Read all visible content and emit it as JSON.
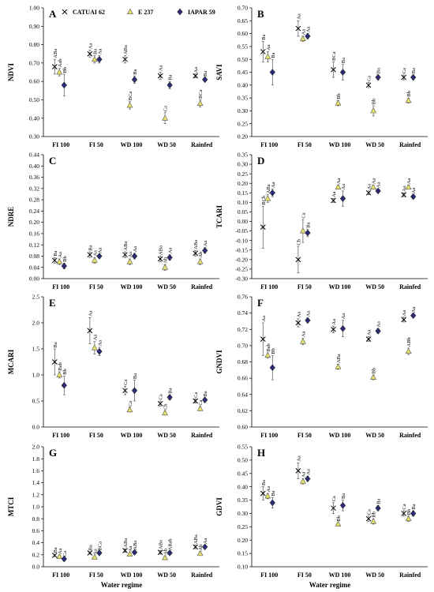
{
  "figure": {
    "x_axis_title": "Water regime",
    "legend": [
      {
        "name": "CATUAI 62",
        "marker": "x",
        "color": "#000000"
      },
      {
        "name": "E 237",
        "marker": "triangle",
        "color": "#e8e36a"
      },
      {
        "name": "IAPAR 59",
        "marker": "diamond",
        "color": "#2b2b7a"
      }
    ]
  },
  "chart_data": [
    {
      "panel": "A",
      "type": "scatter",
      "ylabel": "NDVI",
      "categories": [
        "FI 100",
        "FI 50",
        "WD 100",
        "WD 50",
        "Rainfed"
      ],
      "ylim": [
        0.3,
        1.0
      ],
      "yticks": [
        0.3,
        0.4,
        0.5,
        0.6,
        0.7,
        0.8,
        0.9,
        1.0
      ],
      "ydec": 2,
      "series": [
        {
          "name": "CATUAI 62",
          "values": [
            0.68,
            0.75,
            0.72,
            0.63,
            0.63
          ],
          "err": [
            0.04,
            0.02,
            0.02,
            0.02,
            0.01
          ],
          "labels": [
            "ABa",
            "Aa",
            "ABa",
            "Aa",
            "Aa"
          ]
        },
        {
          "name": "E 237",
          "values": [
            0.65,
            0.72,
            0.47,
            0.4,
            0.48
          ],
          "err": [
            0.02,
            0.02,
            0.02,
            0.03,
            0.02
          ],
          "labels": [
            "Aab",
            "Ba",
            "BCa",
            "Ca",
            "BCa"
          ]
        },
        {
          "name": "IAPAR 59",
          "values": [
            0.58,
            0.72,
            0.61,
            0.58,
            0.61
          ],
          "err": [
            0.06,
            0.02,
            0.02,
            0.02,
            0.01
          ],
          "labels": [
            "Bb",
            "Aa",
            "Ba",
            "Ba",
            "Ba"
          ]
        }
      ]
    },
    {
      "panel": "B",
      "type": "scatter",
      "ylabel": "SAVI",
      "categories": [
        "FI 100",
        "FI 50",
        "WD 100",
        "WD 50",
        "Rainfed"
      ],
      "ylim": [
        0.2,
        0.7
      ],
      "yticks": [
        0.2,
        0.25,
        0.3,
        0.35,
        0.4,
        0.45,
        0.5,
        0.55,
        0.6,
        0.65,
        0.7
      ],
      "ydec": 2,
      "series": [
        {
          "name": "CATUAI 62",
          "values": [
            0.53,
            0.62,
            0.46,
            0.4,
            0.43
          ],
          "err": [
            0.04,
            0.03,
            0.03,
            0.01,
            0.01
          ],
          "labels": [
            "Ba",
            "Aa",
            "BCa",
            "Ca",
            "Ca"
          ]
        },
        {
          "name": "E 237",
          "values": [
            0.51,
            0.58,
            0.33,
            0.3,
            0.34
          ],
          "err": [
            0.02,
            0.01,
            0.01,
            0.02,
            0.01
          ],
          "labels": [
            "Aa",
            "Aa",
            "Bb",
            "Bb",
            "Bb"
          ]
        },
        {
          "name": "IAPAR 59",
          "values": [
            0.45,
            0.59,
            0.45,
            0.43,
            0.43
          ],
          "err": [
            0.05,
            0.01,
            0.03,
            0.01,
            0.01
          ],
          "labels": [
            "Ba",
            "Aa",
            "Ba",
            "Ba",
            "Ba"
          ]
        }
      ]
    },
    {
      "panel": "C",
      "type": "scatter",
      "ylabel": "NDRE",
      "categories": [
        "FI 100",
        "FI 50",
        "WD 100",
        "WD 50",
        "Rainfed"
      ],
      "ylim": [
        0.0,
        0.44
      ],
      "yticks": [
        0.0,
        0.04,
        0.08,
        0.12,
        0.16,
        0.2,
        0.24,
        0.28,
        0.32,
        0.36,
        0.4,
        0.44
      ],
      "ydec": 2,
      "series": [
        {
          "name": "CATUAI 62",
          "values": [
            0.065,
            0.085,
            0.085,
            0.07,
            0.09
          ],
          "err": [
            0.01,
            0.01,
            0.01,
            0.01,
            0.01
          ],
          "labels": [
            "Ba",
            "Ba",
            "ABa",
            "ABa",
            "ABa"
          ]
        },
        {
          "name": "E 237",
          "values": [
            0.06,
            0.065,
            0.06,
            0.04,
            0.06
          ],
          "err": [
            0.01,
            0.01,
            0.01,
            0.01,
            0.01
          ],
          "labels": [
            "Aa",
            "Aa",
            "Aa",
            "Ab",
            "Ab"
          ]
        },
        {
          "name": "IAPAR 59",
          "values": [
            0.045,
            0.08,
            0.08,
            0.075,
            0.1
          ],
          "err": [
            0.01,
            0.005,
            0.01,
            0.01,
            0.01
          ],
          "labels": [
            "Bb",
            "Aa",
            "Aa",
            "Aa",
            "Aa"
          ]
        }
      ]
    },
    {
      "panel": "D",
      "type": "scatter",
      "ylabel": "TCARI",
      "categories": [
        "FI 100",
        "FI 50",
        "WD 100",
        "WD 50",
        "Rainfed"
      ],
      "ylim": [
        -0.3,
        0.35
      ],
      "yticks": [
        -0.3,
        -0.25,
        -0.2,
        -0.15,
        -0.1,
        -0.05,
        0.0,
        0.05,
        0.1,
        0.15,
        0.2,
        0.25,
        0.3,
        0.35
      ],
      "ydec": 2,
      "series": [
        {
          "name": "CATUAI 62",
          "values": [
            -0.03,
            -0.2,
            0.11,
            0.15,
            0.14
          ],
          "err": [
            0.11,
            0.07,
            0.01,
            0.01,
            0.01
          ],
          "labels": [
            "BCb",
            "Cb",
            "Aa",
            "Aa",
            "Aa"
          ]
        },
        {
          "name": "E 237",
          "values": [
            0.12,
            -0.05,
            0.18,
            0.18,
            0.18
          ],
          "err": [
            0.02,
            0.06,
            0.01,
            0.01,
            0.01
          ],
          "labels": [
            "ABa",
            "Ca",
            "Aa",
            "Aa",
            "Aa"
          ]
        },
        {
          "name": "IAPAR 59",
          "values": [
            0.15,
            -0.06,
            0.12,
            0.16,
            0.13
          ],
          "err": [
            0.02,
            0.02,
            0.04,
            0.01,
            0.01
          ],
          "labels": [
            "Aa",
            "Ba",
            "Aa",
            "Aa",
            "Aa"
          ]
        }
      ]
    },
    {
      "panel": "E",
      "type": "scatter",
      "ylabel": "MCARI",
      "categories": [
        "FI 100",
        "FI 50",
        "WD 100",
        "WD 50",
        "Rainfed"
      ],
      "ylim": [
        0.0,
        2.5
      ],
      "yticks": [
        0.0,
        0.5,
        1.0,
        1.5,
        2.0,
        2.5
      ],
      "ydec": 1,
      "series": [
        {
          "name": "CATUAI 62",
          "values": [
            1.25,
            1.85,
            0.7,
            0.45,
            0.5
          ],
          "err": [
            0.25,
            0.25,
            0.08,
            0.05,
            0.04
          ],
          "labels": [
            "Ba",
            "Aa",
            "Ca",
            "Ca",
            "Ca"
          ]
        },
        {
          "name": "E 237",
          "values": [
            1.0,
            1.52,
            0.33,
            0.27,
            0.35
          ],
          "err": [
            0.06,
            0.12,
            0.04,
            0.04,
            0.04
          ],
          "labels": [
            "Bab",
            "Aa",
            "Ca",
            "Cb",
            "Ca"
          ]
        },
        {
          "name": "IAPAR 59",
          "values": [
            0.8,
            1.45,
            0.7,
            0.57,
            0.52
          ],
          "err": [
            0.18,
            0.08,
            0.2,
            0.05,
            0.04
          ],
          "labels": [
            "Bb",
            "Aa",
            "Ba",
            "Ba",
            "Ba"
          ]
        }
      ]
    },
    {
      "panel": "F",
      "type": "scatter",
      "ylabel": "GNDVI",
      "categories": [
        "FI 100",
        "FI 50",
        "WD 100",
        "WD 50",
        "Rainfed"
      ],
      "ylim": [
        0.6,
        0.76
      ],
      "yticks": [
        0.6,
        0.62,
        0.64,
        0.66,
        0.68,
        0.7,
        0.72,
        0.74,
        0.76
      ],
      "ydec": 2,
      "series": [
        {
          "name": "CATUAI 62",
          "values": [
            0.708,
            0.728,
            0.72,
            0.708,
            0.732
          ],
          "err": [
            0.02,
            0.005,
            0.004,
            0.003,
            0.003
          ],
          "labels": [
            "Aa",
            "Aa",
            "Aa",
            "Aa",
            "Aa"
          ]
        },
        {
          "name": "E 237",
          "values": [
            0.688,
            0.705,
            0.674,
            0.661,
            0.693
          ],
          "err": [
            0.003,
            0.004,
            0.003,
            0.003,
            0.004
          ],
          "labels": [
            "Bab",
            "Aa",
            "ABa",
            "Bb",
            "ABb"
          ]
        },
        {
          "name": "IAPAR 59",
          "values": [
            0.673,
            0.731,
            0.721,
            0.718,
            0.737
          ],
          "err": [
            0.015,
            0.003,
            0.01,
            0.003,
            0.002
          ],
          "labels": [
            "Bb",
            "Aa",
            "Aa",
            "Aa",
            "Aa"
          ]
        }
      ]
    },
    {
      "panel": "G",
      "type": "scatter",
      "ylabel": "MTCI",
      "categories": [
        "FI 100",
        "FI 50",
        "WD 100",
        "WD 50",
        "Rainfed"
      ],
      "ylim": [
        0.0,
        2.0
      ],
      "yticks": [
        0.0,
        0.2,
        0.4,
        0.6,
        0.8,
        1.0,
        1.2,
        1.4,
        1.6,
        1.8,
        2.0
      ],
      "ydec": 1,
      "series": [
        {
          "name": "CATUAI 62",
          "values": [
            0.19,
            0.23,
            0.27,
            0.24,
            0.33
          ],
          "err": [
            0.02,
            0.02,
            0.03,
            0.03,
            0.03
          ],
          "labels": [
            "Ba",
            "Ba",
            "ABa",
            "ABa",
            "ABa"
          ]
        },
        {
          "name": "E 237",
          "values": [
            0.17,
            0.16,
            0.21,
            0.15,
            0.22
          ],
          "err": [
            0.02,
            0.02,
            0.02,
            0.03,
            0.03
          ],
          "labels": [
            "Aa",
            "Aa",
            "Aa",
            "Ab",
            "Ab"
          ]
        },
        {
          "name": "IAPAR 59",
          "values": [
            0.13,
            0.23,
            0.24,
            0.23,
            0.33
          ],
          "err": [
            0.02,
            0.02,
            0.02,
            0.02,
            0.03
          ],
          "labels": [
            "Ca",
            "BCa",
            "ABa",
            "ABab",
            "Aa"
          ]
        }
      ]
    },
    {
      "panel": "H",
      "type": "scatter",
      "ylabel": "GDVI",
      "categories": [
        "FI 100",
        "FI 50",
        "WD 100",
        "WD 50",
        "Rainfed"
      ],
      "ylim": [
        0.1,
        0.55
      ],
      "yticks": [
        0.1,
        0.15,
        0.2,
        0.25,
        0.3,
        0.35,
        0.4,
        0.45,
        0.5,
        0.55
      ],
      "ydec": 2,
      "series": [
        {
          "name": "CATUAI 62",
          "values": [
            0.375,
            0.46,
            0.32,
            0.28,
            0.3
          ],
          "err": [
            0.025,
            0.03,
            0.02,
            0.01,
            0.01
          ],
          "labels": [
            "Ba",
            "Aa",
            "Ca",
            "Ca",
            "Ca"
          ]
        },
        {
          "name": "E 237",
          "values": [
            0.365,
            0.42,
            0.26,
            0.27,
            0.28
          ],
          "err": [
            0.01,
            0.01,
            0.005,
            0.01,
            0.01
          ],
          "labels": [
            "Aa",
            "Aa",
            "Bb",
            "Bb",
            "Bb"
          ]
        },
        {
          "name": "IAPAR 59",
          "values": [
            0.34,
            0.43,
            0.33,
            0.32,
            0.3
          ],
          "err": [
            0.02,
            0.01,
            0.02,
            0.01,
            0.01
          ],
          "labels": [
            "Ba",
            "Aa",
            "Ba",
            "Ba",
            "Ba"
          ]
        }
      ]
    }
  ]
}
